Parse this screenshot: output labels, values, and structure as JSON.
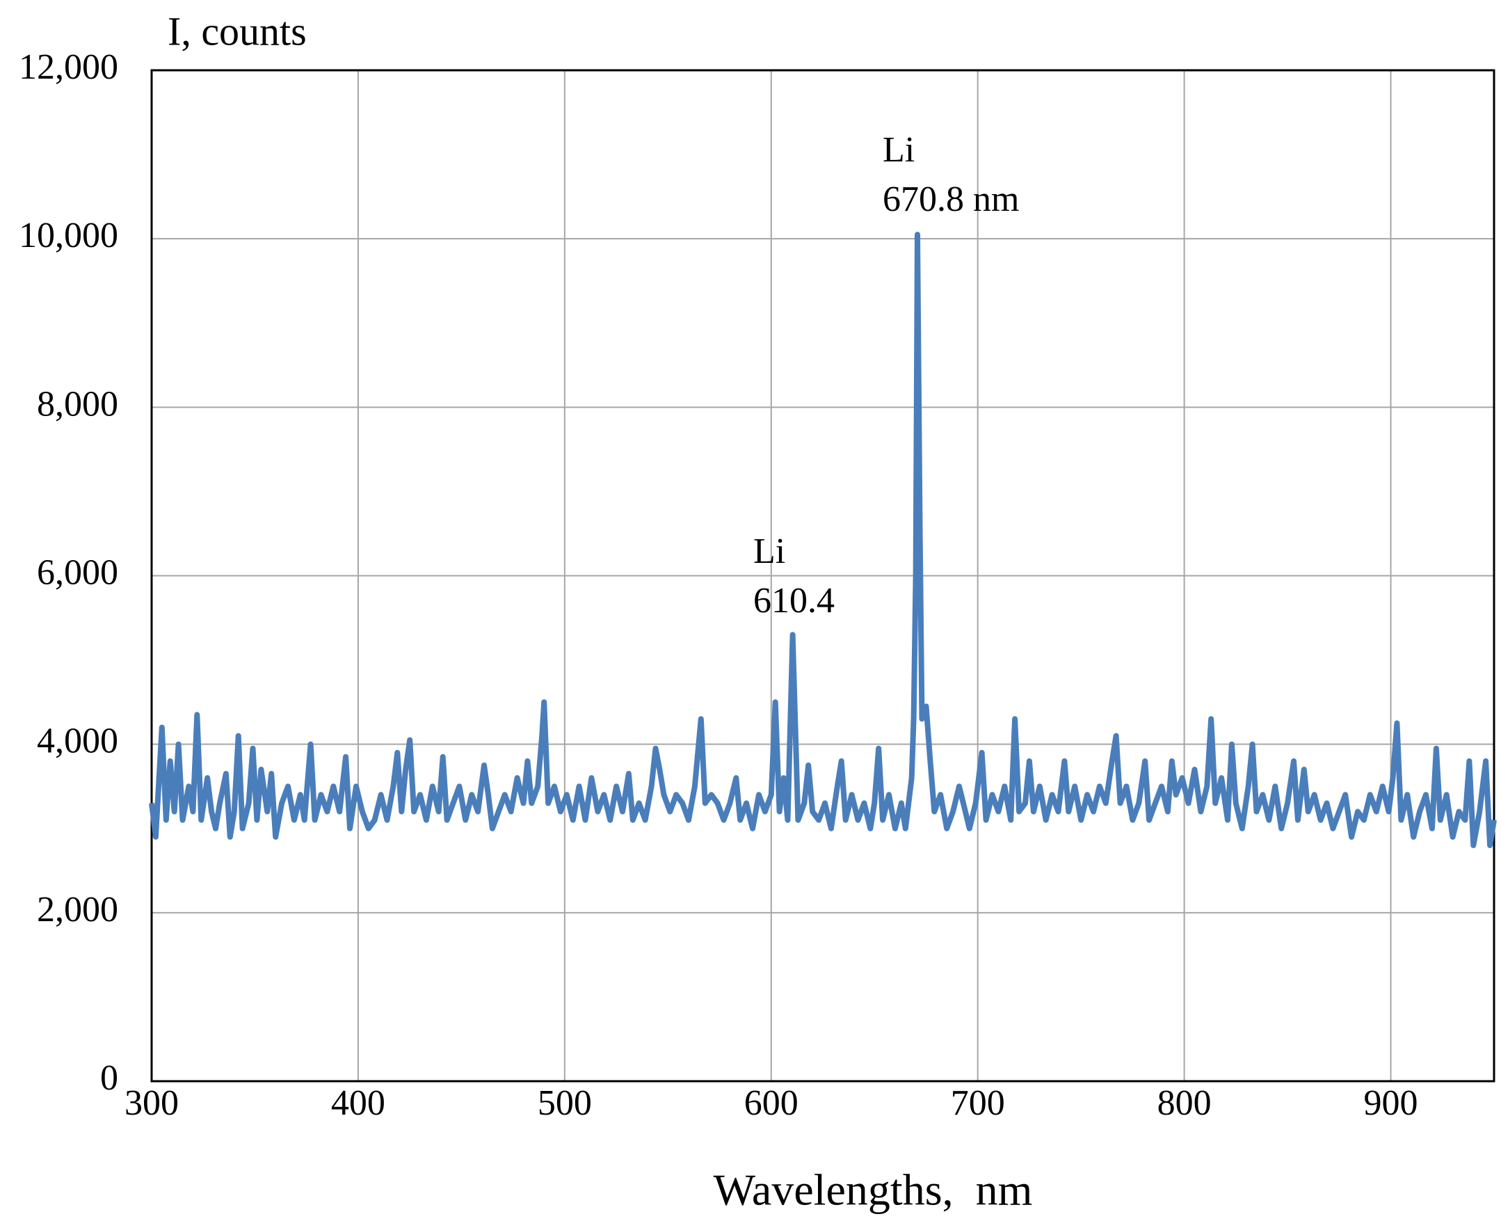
{
  "chart_data": {
    "type": "line",
    "y_label": "I, counts",
    "x_label": "Wavelengths,  nm",
    "xlim": [
      300,
      950
    ],
    "ylim": [
      0,
      12000
    ],
    "xticks": [
      300,
      400,
      500,
      600,
      700,
      800,
      900
    ],
    "yticks": [
      0,
      {
        "value": 2000,
        "label": "2,000"
      },
      {
        "value": 4000,
        "label": "4,000"
      },
      {
        "value": 6000,
        "label": "6,000"
      },
      {
        "value": 8000,
        "label": "8,000"
      },
      {
        "value": 10000,
        "label": "10,000"
      },
      {
        "value": 12000,
        "label": "12,000"
      }
    ],
    "grid": true,
    "color": "#4a7ebb",
    "annotations": [
      [
        "Li",
        "670.8 nm"
      ],
      [
        "Li",
        "610.4"
      ]
    ],
    "x": [
      300,
      302,
      305,
      307,
      309,
      311,
      313,
      315,
      318,
      320,
      322,
      324,
      327,
      329,
      331,
      333,
      336,
      338,
      340,
      342,
      344,
      347,
      349,
      351,
      353,
      356,
      358,
      360,
      363,
      366,
      369,
      372,
      374,
      377,
      379,
      382,
      385,
      388,
      391,
      394,
      396,
      399,
      402,
      405,
      408,
      411,
      414,
      417,
      419,
      421,
      423,
      425,
      427,
      430,
      433,
      436,
      439,
      441,
      443,
      446,
      449,
      452,
      455,
      458,
      461,
      463,
      465,
      468,
      471,
      474,
      477,
      480,
      482,
      484,
      487,
      489,
      490,
      492,
      495,
      498,
      501,
      504,
      507,
      510,
      513,
      516,
      519,
      522,
      525,
      528,
      531,
      533,
      536,
      539,
      542,
      544,
      546,
      548,
      551,
      554,
      557,
      560,
      563,
      566,
      568,
      571,
      574,
      577,
      580,
      583,
      585,
      588,
      591,
      594,
      597,
      600,
      602,
      604,
      606,
      608,
      610.4,
      613,
      616,
      618,
      620,
      623,
      626,
      629,
      632,
      634,
      636,
      639,
      642,
      645,
      648,
      650,
      652,
      654,
      657,
      660,
      663,
      665,
      668,
      669,
      670,
      670.8,
      672,
      673,
      675,
      677,
      679,
      682,
      685,
      688,
      691,
      694,
      696,
      699,
      702,
      704,
      707,
      710,
      713,
      716,
      718,
      720,
      723,
      725,
      727,
      730,
      733,
      736,
      739,
      742,
      744,
      747,
      750,
      753,
      756,
      759,
      762,
      765,
      767,
      769,
      772,
      775,
      778,
      781,
      783,
      786,
      789,
      792,
      794,
      796,
      799,
      802,
      805,
      808,
      811,
      813,
      815,
      818,
      821,
      823,
      825,
      828,
      831,
      833,
      835,
      838,
      841,
      844,
      847,
      850,
      853,
      855,
      858,
      860,
      863,
      866,
      869,
      872,
      875,
      878,
      881,
      884,
      887,
      890,
      893,
      896,
      899,
      901,
      903,
      905,
      908,
      911,
      914,
      917,
      920,
      922,
      924,
      927,
      930,
      933,
      936,
      938,
      940,
      943,
      946,
      948,
      950
    ],
    "values": [
      3300,
      2900,
      4200,
      3100,
      3800,
      3200,
      4000,
      3100,
      3500,
      3200,
      4350,
      3100,
      3600,
      3200,
      3000,
      3300,
      3650,
      2900,
      3200,
      4100,
      3000,
      3300,
      3950,
      3100,
      3700,
      3200,
      3650,
      2900,
      3300,
      3500,
      3100,
      3400,
      3100,
      4000,
      3100,
      3400,
      3200,
      3500,
      3200,
      3850,
      3000,
      3500,
      3200,
      3000,
      3100,
      3400,
      3100,
      3500,
      3900,
      3200,
      3700,
      4050,
      3200,
      3400,
      3100,
      3500,
      3200,
      3850,
      3100,
      3300,
      3500,
      3100,
      3400,
      3200,
      3750,
      3400,
      3000,
      3200,
      3400,
      3200,
      3600,
      3300,
      3800,
      3300,
      3500,
      4100,
      4500,
      3300,
      3500,
      3200,
      3400,
      3100,
      3500,
      3100,
      3600,
      3200,
      3400,
      3100,
      3500,
      3200,
      3650,
      3100,
      3300,
      3100,
      3500,
      3950,
      3700,
      3400,
      3200,
      3400,
      3300,
      3100,
      3500,
      4300,
      3300,
      3400,
      3300,
      3100,
      3300,
      3600,
      3100,
      3300,
      3000,
      3400,
      3200,
      3400,
      4500,
      3200,
      3600,
      3100,
      5300,
      3100,
      3300,
      3750,
      3200,
      3100,
      3300,
      3000,
      3500,
      3800,
      3100,
      3400,
      3100,
      3300,
      3000,
      3300,
      3950,
      3100,
      3400,
      3000,
      3300,
      3000,
      3600,
      4300,
      6000,
      10050,
      6500,
      4300,
      4450,
      3800,
      3200,
      3400,
      3000,
      3200,
      3500,
      3200,
      3000,
      3300,
      3900,
      3100,
      3400,
      3200,
      3500,
      3100,
      4300,
      3200,
      3300,
      3800,
      3200,
      3500,
      3100,
      3400,
      3200,
      3800,
      3200,
      3500,
      3100,
      3400,
      3200,
      3500,
      3300,
      3800,
      4100,
      3300,
      3500,
      3100,
      3300,
      3800,
      3100,
      3300,
      3500,
      3200,
      3800,
      3400,
      3600,
      3300,
      3700,
      3200,
      3500,
      4300,
      3300,
      3600,
      3100,
      4000,
      3300,
      3000,
      3500,
      4000,
      3200,
      3400,
      3100,
      3500,
      3000,
      3300,
      3800,
      3100,
      3700,
      3200,
      3400,
      3100,
      3300,
      3000,
      3200,
      3400,
      2900,
      3200,
      3100,
      3400,
      3200,
      3500,
      3200,
      3600,
      4250,
      3100,
      3400,
      2900,
      3200,
      3400,
      3000,
      3950,
      3100,
      3400,
      2900,
      3200,
      3100,
      3800,
      2800,
      3200,
      3800,
      2800,
      3100
    ]
  }
}
